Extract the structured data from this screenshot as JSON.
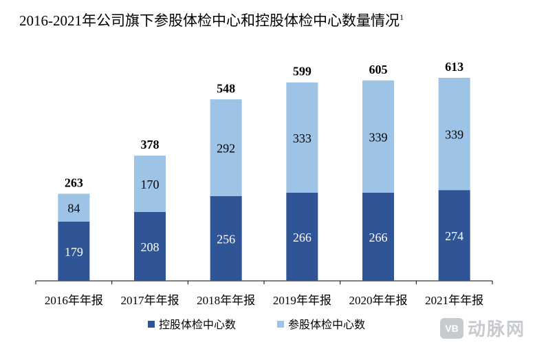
{
  "chart_data": {
    "type": "bar",
    "stacked": true,
    "title": "2016-2021年公司旗下参股体检中心和控股体检中心数量情况",
    "title_superscript": "1",
    "categories": [
      "2016年年报",
      "2017年年报",
      "2018年年报",
      "2019年年报",
      "2020年年报",
      "2021年年报"
    ],
    "series": [
      {
        "name": "控股体检中心数",
        "values": [
          179,
          208,
          256,
          266,
          266,
          274
        ],
        "color": "#2f5597",
        "label_color": "#ffffff"
      },
      {
        "name": "参股体检中心数",
        "values": [
          84,
          170,
          292,
          333,
          339,
          339
        ],
        "color": "#9dc3e6",
        "label_color": "#000000"
      }
    ],
    "totals": [
      263,
      378,
      548,
      599,
      605,
      613
    ],
    "ylim": [
      0,
      700
    ],
    "grid": false,
    "legend_position": "bottom"
  },
  "watermark": {
    "logo": "VB",
    "text": "动脉网"
  }
}
